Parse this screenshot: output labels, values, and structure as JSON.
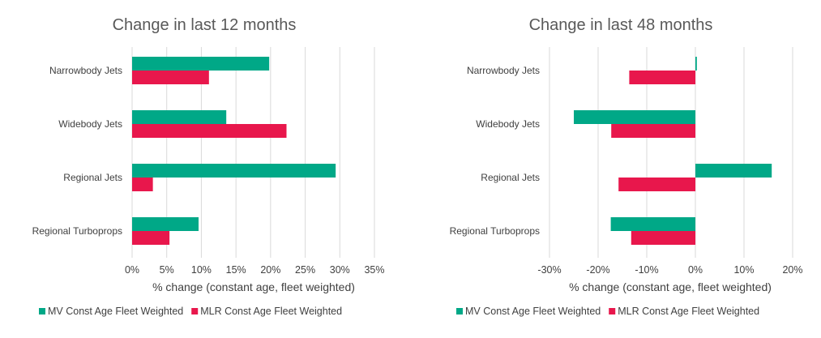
{
  "chart_data": [
    {
      "type": "bar",
      "orientation": "horizontal",
      "title": "Change in last 12 months",
      "xlabel": "% change (constant age, fleet weighted)",
      "ylabel": "",
      "categories": [
        "Narrowbody Jets",
        "Widebody Jets",
        "Regional Jets",
        "Regional Turboprops"
      ],
      "series": [
        {
          "name": "MV Const Age Fleet Weighted",
          "color": "#00A887",
          "values": [
            19.8,
            13.6,
            29.4,
            9.6
          ]
        },
        {
          "name": "MLR Const Age Fleet Weighted",
          "color": "#E8174C",
          "values": [
            11.1,
            22.3,
            3.0,
            5.4
          ]
        }
      ],
      "xlim": [
        0,
        35
      ],
      "xticks": [
        0,
        5,
        10,
        15,
        20,
        25,
        30,
        35
      ],
      "xtick_labels": [
        "0%",
        "5%",
        "10%",
        "15%",
        "20%",
        "25%",
        "30%",
        "35%"
      ],
      "grid": true,
      "legend_position": "bottom"
    },
    {
      "type": "bar",
      "orientation": "horizontal",
      "title": "Change in last 48 months",
      "xlabel": "% change (constant age, fleet weighted)",
      "ylabel": "",
      "categories": [
        "Narrowbody Jets",
        "Widebody Jets",
        "Regional Jets",
        "Regional Turboprops"
      ],
      "series": [
        {
          "name": "MV Const Age Fleet Weighted",
          "color": "#00A887",
          "values": [
            0.3,
            -25.0,
            15.7,
            -17.4
          ]
        },
        {
          "name": "MLR Const Age Fleet Weighted",
          "color": "#E8174C",
          "values": [
            -13.6,
            -17.3,
            -15.8,
            -13.2
          ]
        }
      ],
      "xlim": [
        -30,
        20
      ],
      "xticks": [
        -30,
        -20,
        -10,
        0,
        10,
        20
      ],
      "xtick_labels": [
        "-30%",
        "-20%",
        "-10%",
        "0%",
        "10%",
        "20%"
      ],
      "grid": true,
      "legend_position": "bottom"
    }
  ]
}
